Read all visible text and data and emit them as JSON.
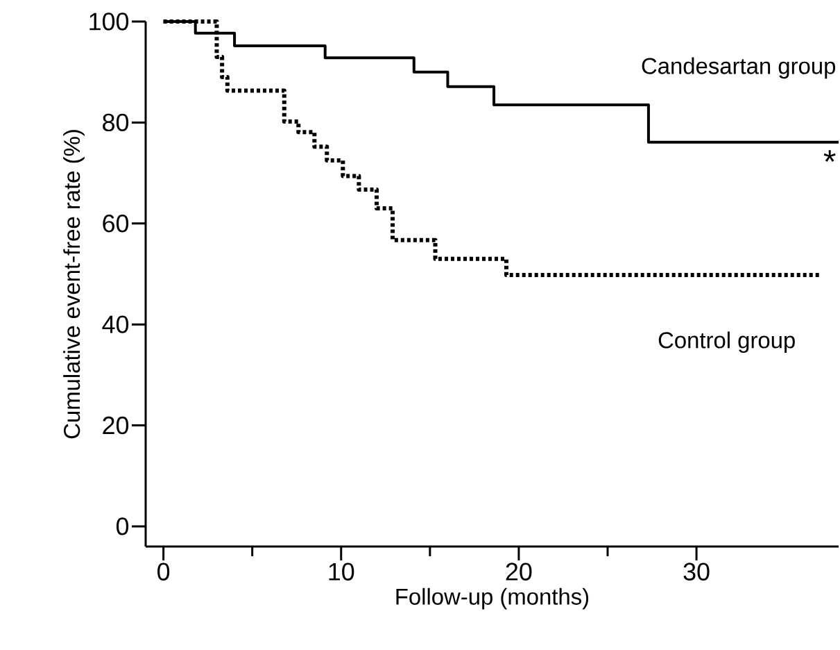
{
  "chart_data": {
    "type": "step",
    "xlabel": "Follow-up (months)",
    "ylabel": "Cumulative event-free rate (%)",
    "xlim": [
      -1,
      38
    ],
    "ylim": [
      -4,
      100
    ],
    "xticks": [
      0,
      10,
      20,
      30
    ],
    "yticks": [
      0,
      20,
      40,
      60,
      80,
      100
    ],
    "series": [
      {
        "name": "Candesartan group",
        "color": "#000000",
        "line_style": "solid",
        "x": [
          0,
          1.8,
          4.0,
          9.1,
          14.1,
          16.0,
          18.6,
          27.3,
          38
        ],
        "values": [
          100,
          97.7,
          95.2,
          92.8,
          90.0,
          87.1,
          83.5,
          76.1,
          76.1
        ]
      },
      {
        "name": "Control group",
        "color": "#000000",
        "line_style": "dotted",
        "x": [
          0,
          3.0,
          3.3,
          3.6,
          6.8,
          7.6,
          8.5,
          9.2,
          10.1,
          11.0,
          12.0,
          12.9,
          15.3,
          19.3,
          36.9
        ],
        "values": [
          100,
          93,
          89,
          86.3,
          80.2,
          78.1,
          75.2,
          72.5,
          69.4,
          66.7,
          63.0,
          56.7,
          53.0,
          49.8,
          49.8
        ]
      }
    ],
    "annotations": [
      "*"
    ]
  }
}
